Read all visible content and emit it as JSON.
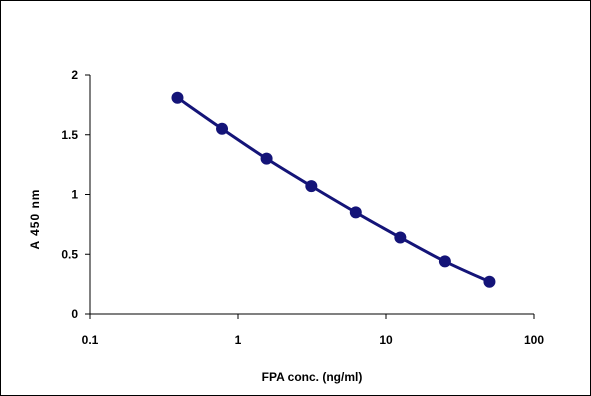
{
  "chart_data": {
    "type": "line",
    "title": "",
    "xlabel": "FPA conc. (ng/ml)",
    "ylabel": "A 450 nm",
    "x_scale": "log",
    "xlim": [
      0.1,
      100
    ],
    "ylim": [
      0,
      2
    ],
    "x_ticks": [
      0.1,
      1,
      10,
      100
    ],
    "x_tick_labels": [
      "0.1",
      "1",
      "10",
      "100"
    ],
    "y_ticks": [
      0,
      0.5,
      1,
      1.5,
      2
    ],
    "y_tick_labels": [
      "0",
      "0.5",
      "1",
      "1.5",
      "2"
    ],
    "grid": false,
    "legend": "none",
    "series": [
      {
        "x": [
          0.39,
          0.78,
          1.56,
          3.13,
          6.25,
          12.5,
          25,
          50
        ],
        "y": [
          1.81,
          1.55,
          1.3,
          1.07,
          0.85,
          0.64,
          0.44,
          0.27
        ],
        "color": "#141478",
        "marker": "circle"
      }
    ]
  }
}
